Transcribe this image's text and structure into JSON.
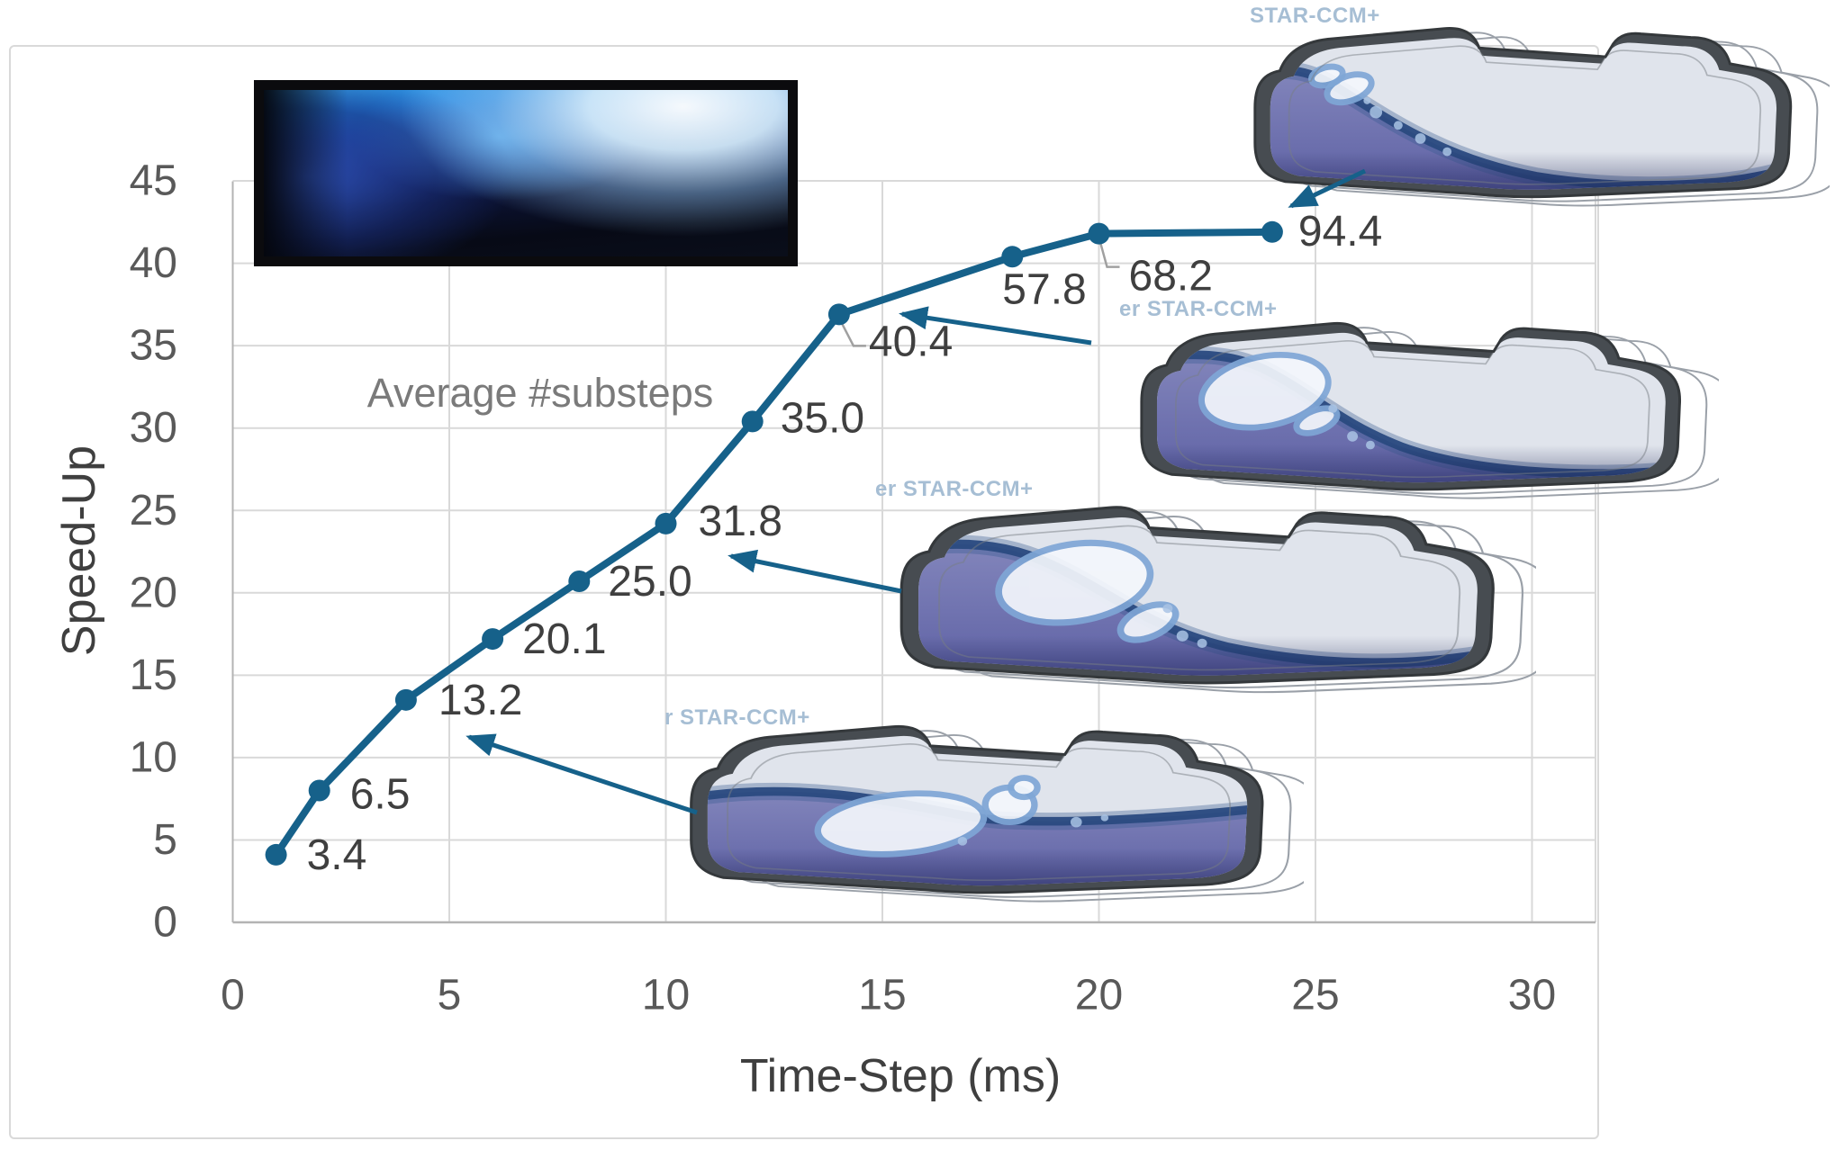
{
  "figure": {
    "background": "#ffffff",
    "panel_border_color": "#d9d9d9"
  },
  "chart_data": {
    "type": "line",
    "title": "",
    "xlabel": "Time-Step (ms)",
    "ylabel": "Speed-Up",
    "annotation": "Average #substeps",
    "x": [
      1,
      2,
      4,
      6,
      8,
      10,
      12,
      14,
      18,
      20,
      24
    ],
    "series": [
      {
        "name": "Speed-Up",
        "values": [
          4.1,
          8.0,
          13.5,
          17.2,
          20.7,
          24.2,
          30.4,
          36.9,
          40.4,
          41.8,
          41.9
        ]
      }
    ],
    "point_labels": [
      "3.4",
      "6.5",
      "13.2",
      "20.1",
      "25.0",
      "31.8",
      "35.0",
      "40.4",
      "57.8",
      "68.2",
      "94.4"
    ],
    "xlim": [
      0,
      31.5
    ],
    "ylim": [
      0,
      45
    ],
    "xticks": [
      0,
      5,
      10,
      15,
      20,
      25,
      30
    ],
    "yticks": [
      0,
      5,
      10,
      15,
      20,
      25,
      30,
      35,
      40,
      45
    ],
    "grid": true,
    "legend": "none",
    "line_color": "#16618a",
    "marker_color": "#16618a",
    "arrow_color": "#16618a",
    "label_color": "#3f3f3f",
    "tick_color": "#595959",
    "grid_color": "#d9d9d9",
    "axis_color": "#b3b3b3",
    "leader_color": "#a0a0a0"
  },
  "watermarks": {
    "top": "STAR-CCM+",
    "mid_right": "er STAR-CCM+",
    "mid_center": "er STAR-CCM+",
    "bottom": "r STAR-CCM+"
  }
}
